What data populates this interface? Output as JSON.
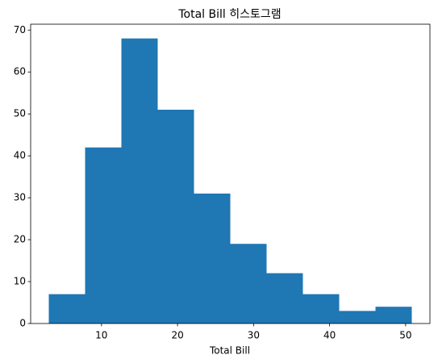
{
  "chart_data": {
    "type": "histogram",
    "title": "Total Bill 히스토그램",
    "x_label": "Total Bill",
    "bins": [
      3.07,
      7.844,
      12.618,
      17.392,
      22.166,
      26.94,
      31.714,
      36.488,
      41.262,
      46.036,
      50.81
    ],
    "values": [
      7,
      42,
      68,
      51,
      31,
      19,
      12,
      7,
      3,
      4
    ],
    "color": "#1f77b4",
    "xlim": [
      0.683,
      53.197
    ],
    "xticks": [
      10,
      20,
      30,
      40,
      50
    ],
    "ylim": [
      0,
      71.4
    ],
    "yticks": [
      0,
      10,
      20,
      30,
      40,
      50,
      60,
      70
    ]
  }
}
